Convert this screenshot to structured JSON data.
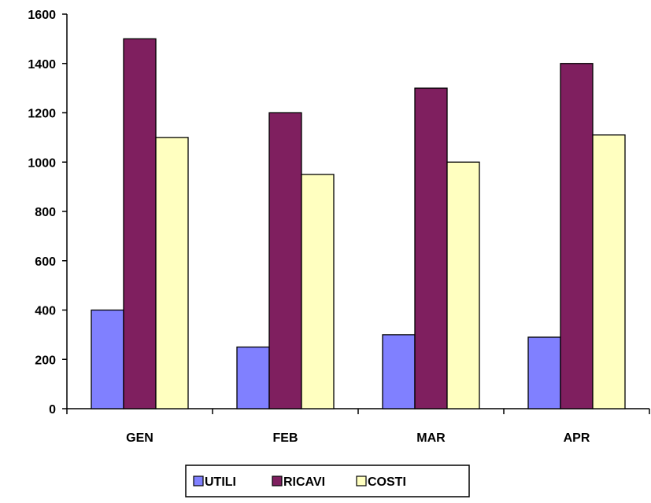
{
  "chart_data": {
    "type": "bar",
    "categories": [
      "GEN",
      "FEB",
      "MAR",
      "APR"
    ],
    "series": [
      {
        "name": "UTILI",
        "values": [
          400,
          250,
          300,
          290
        ],
        "color": "#8080ff"
      },
      {
        "name": "RICAVI",
        "values": [
          1500,
          1200,
          1300,
          1400
        ],
        "color": "#7f1f5f"
      },
      {
        "name": "COSTI",
        "values": [
          1100,
          950,
          1000,
          1110
        ],
        "color": "#ffffc0"
      }
    ],
    "ylim": [
      0,
      1600
    ],
    "yticks": [
      0,
      200,
      400,
      600,
      800,
      1000,
      1200,
      1400,
      1600
    ],
    "grid": false,
    "legend_position": "bottom"
  }
}
